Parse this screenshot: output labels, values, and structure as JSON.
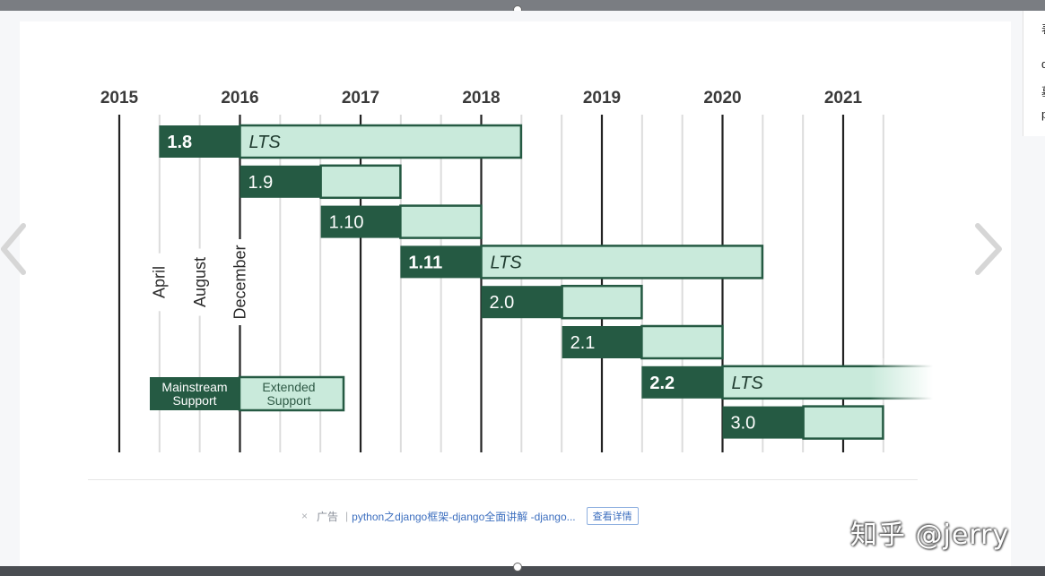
{
  "chart_data": {
    "type": "gantt",
    "title": "",
    "x_axis": {
      "min": 2015.0,
      "max": 2021.4,
      "ticks": [
        "2015",
        "2016",
        "2017",
        "2018",
        "2019",
        "2020",
        "2021"
      ]
    },
    "month_labels": [
      "April",
      "August",
      "December"
    ],
    "legend": {
      "mainstream": "Mainstream Support",
      "extended": "Extended Support",
      "placement": "bottom-left"
    },
    "releases": [
      {
        "name": "1.8",
        "start": 2015.33,
        "mainstream_end": 2016.0,
        "extended_end": 2018.33,
        "lts": true,
        "label": "LTS"
      },
      {
        "name": "1.9",
        "start": 2016.0,
        "mainstream_end": 2016.67,
        "extended_end": 2017.33,
        "lts": false
      },
      {
        "name": "1.10",
        "start": 2016.67,
        "mainstream_end": 2017.33,
        "extended_end": 2018.0,
        "lts": false
      },
      {
        "name": "1.11",
        "start": 2017.33,
        "mainstream_end": 2018.0,
        "extended_end": 2020.33,
        "lts": true,
        "label": "LTS"
      },
      {
        "name": "2.0",
        "start": 2018.0,
        "mainstream_end": 2018.67,
        "extended_end": 2019.33,
        "lts": false
      },
      {
        "name": "2.1",
        "start": 2018.67,
        "mainstream_end": 2019.33,
        "extended_end": 2020.0,
        "lts": false
      },
      {
        "name": "2.2",
        "start": 2019.33,
        "mainstream_end": 2020.0,
        "extended_end": 2022.33,
        "lts": true,
        "label": "LTS"
      },
      {
        "name": "3.0",
        "start": 2020.0,
        "mainstream_end": 2020.67,
        "extended_end": 2021.33,
        "lts": false
      }
    ],
    "colors": {
      "mainstream": "#255a43",
      "extended": "#c9eadb",
      "extended_border": "#255a43",
      "grid_year": "#222222",
      "grid_month": "#dcdcdc"
    }
  },
  "ad": {
    "close": "×",
    "tag": "广告",
    "separator": "|",
    "text": "python之django框架-django全面讲解 -django...",
    "button": "查看详情"
  },
  "watermark": "知乎 @jerry",
  "side_panel": {
    "lines": [
      "表",
      "d",
      "墓",
      "p"
    ]
  },
  "icons": {
    "prev": "chevron-left-icon",
    "next": "chevron-right-icon"
  }
}
